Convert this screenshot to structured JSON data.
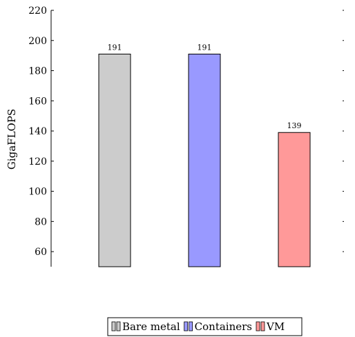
{
  "chart_data": {
    "type": "bar",
    "title": "",
    "xlabel": "",
    "ylabel": "GigaFLOPS",
    "ylim": [
      50,
      220
    ],
    "yticks": [
      60,
      80,
      100,
      120,
      140,
      160,
      180,
      200,
      220
    ],
    "grid": false,
    "legend_position": "bottom",
    "series": [
      {
        "name": "Bare metal",
        "values": [
          191
        ],
        "color": "#cccccc"
      },
      {
        "name": "Containers",
        "values": [
          191
        ],
        "color": "#9999ff"
      },
      {
        "name": "VM",
        "values": [
          139
        ],
        "color": "#ff9999"
      }
    ],
    "data_labels": [
      "191",
      "191",
      "139"
    ]
  }
}
